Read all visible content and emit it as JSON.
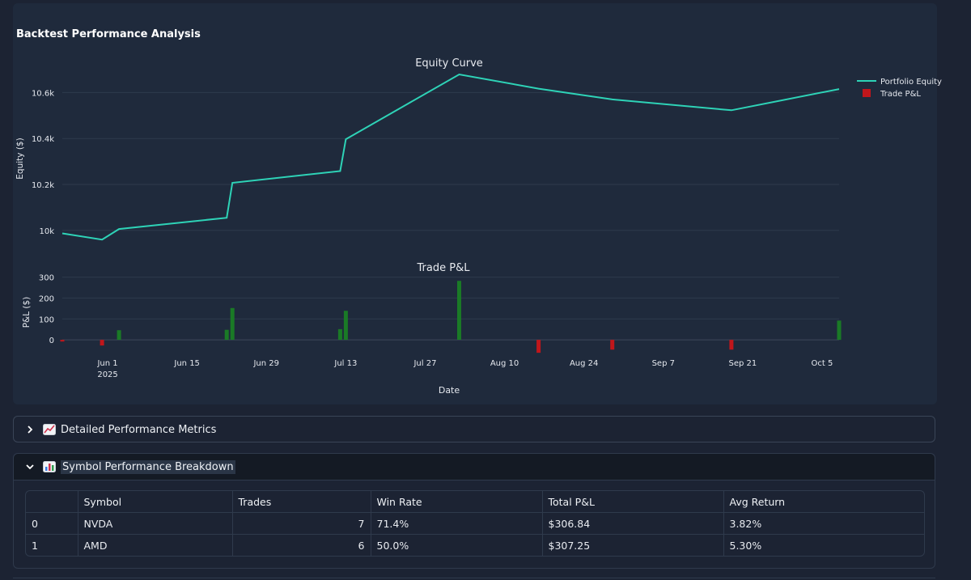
{
  "page": {
    "section_title": "Backtest Performance Analysis"
  },
  "chart_data": [
    {
      "type": "line",
      "title": "Equity Curve",
      "ylabel": "Equity ($)",
      "xlabel": "",
      "ylim": [
        9950,
        10700
      ],
      "yticks": [
        10000,
        10200,
        10400,
        10600
      ],
      "ytick_labels": [
        "10k",
        "10.2k",
        "10.4k",
        "10.6k"
      ],
      "series": [
        {
          "name": "Portfolio Equity",
          "color": "#2ed3b7",
          "x": [
            "2025-05-24",
            "2025-05-31",
            "2025-06-03",
            "2025-06-22",
            "2025-06-23",
            "2025-07-12",
            "2025-07-13",
            "2025-08-02",
            "2025-08-16",
            "2025-08-29",
            "2025-09-19",
            "2025-10-08"
          ],
          "values": [
            9987,
            9960,
            10006,
            10055,
            10207,
            10258,
            10397,
            10679,
            10617,
            10570,
            10523,
            10615
          ]
        }
      ]
    },
    {
      "type": "bar",
      "title": "Trade P&L",
      "ylabel": "P&L ($)",
      "xlabel": "Date",
      "ylim": [
        -50,
        310
      ],
      "yticks": [
        0,
        100,
        200,
        300
      ],
      "ytick_labels": [
        "0",
        "100",
        "200",
        "300"
      ],
      "xticks": [
        "2025-06-01",
        "2025-06-15",
        "2025-06-29",
        "2025-07-13",
        "2025-07-27",
        "2025-08-10",
        "2025-08-24",
        "2025-09-07",
        "2025-09-21",
        "2025-10-05"
      ],
      "xtick_labels": [
        "Jun 1",
        "Jun 15",
        "Jun 29",
        "Jul 13",
        "Jul 27",
        "Aug 10",
        "Aug 24",
        "Sep 7",
        "Sep 21",
        "Oct 5"
      ],
      "xtick_year": "2025",
      "positive_color": "#1a7a26",
      "negative_color": "#c0161b",
      "series": [
        {
          "name": "Trade P&L",
          "x": [
            "2025-05-24",
            "2025-05-31",
            "2025-06-03",
            "2025-06-22",
            "2025-06-23",
            "2025-07-12",
            "2025-07-13",
            "2025-08-02",
            "2025-08-16",
            "2025-08-29",
            "2025-09-19",
            "2025-10-08"
          ],
          "values": [
            -8,
            -27,
            46,
            48,
            152,
            51,
            139,
            282,
            -62,
            -47,
            -47,
            92
          ]
        }
      ]
    }
  ],
  "legend": {
    "equity_label": "Portfolio Equity",
    "pnl_label": "Trade P&L"
  },
  "expanders": {
    "metrics": {
      "label": "Detailed Performance Metrics",
      "icon": "chart-increasing-icon",
      "expanded": false
    },
    "symbols": {
      "label": "Symbol Performance Breakdown",
      "icon": "bar-chart-icon",
      "expanded": true
    }
  },
  "table": {
    "headers": [
      "",
      "Symbol",
      "Trades",
      "Win Rate",
      "Total P&L",
      "Avg Return"
    ],
    "rows": [
      [
        "0",
        "NVDA",
        "7",
        "71.4%",
        "$306.84",
        "3.82%"
      ],
      [
        "1",
        "AMD",
        "6",
        "50.0%",
        "$307.25",
        "5.30%"
      ]
    ]
  }
}
